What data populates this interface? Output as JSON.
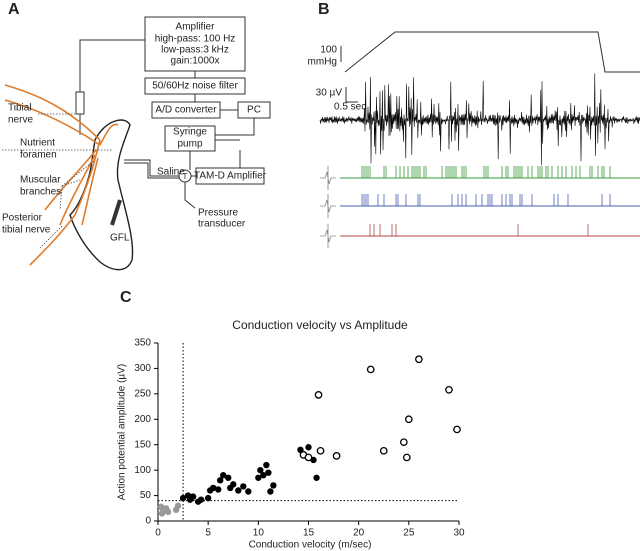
{
  "panel_a": {
    "label": "A",
    "amplifier": [
      "Amplifier",
      "high-pass: 100 Hz",
      "low-pass:3 kHz",
      "gain:1000x"
    ],
    "noise_filter": "50/60Hz noise filter",
    "ad_converter": "A/D converter",
    "pc": "PC",
    "syringe_pump": [
      "Syringe",
      "pump"
    ],
    "tam_d": "TAM-D Amplifier",
    "t": "T",
    "saline": "Saline",
    "pressure_transducer": [
      "Pressure",
      "transducer"
    ],
    "tibial_nerve": [
      "Tibial",
      "nerve"
    ],
    "nutrient_foramen": [
      "Nutrient",
      "foramen"
    ],
    "muscular_branches": [
      "Muscular",
      "branches"
    ],
    "posterior_tibial_nerve": [
      "Posterior",
      "tibial nerve"
    ],
    "gfl": "GFL"
  },
  "panel_b": {
    "label": "B",
    "pressure_scale": [
      "100",
      "mmHg"
    ],
    "voltage_scale": "30 µV",
    "time_scale": "0.5 sec"
  },
  "panel_c": {
    "label": "C",
    "chart_data": {
      "type": "scatter",
      "title": "Conduction velocity vs Amplitude",
      "x_label": "Conduction velocity (m/sec)",
      "y_label": "Action potential amplitude (µV)",
      "xlim": [
        0,
        30
      ],
      "ylim": [
        0,
        350
      ],
      "xticks": [
        0,
        5,
        10,
        15,
        20,
        25,
        30
      ],
      "yticks": [
        0,
        50,
        100,
        150,
        200,
        250,
        300,
        350
      ],
      "reference_lines": {
        "x": 2.5,
        "y": 40
      },
      "series": [
        {
          "color": "#999999",
          "marker": "filled",
          "x": [
            0.3,
            0.5,
            0.8,
            0.4,
            1.0,
            1.8,
            2.0
          ],
          "y": [
            28,
            22,
            25,
            15,
            18,
            22,
            30
          ]
        },
        {
          "color": "#000000",
          "marker": "filled",
          "x": [
            2.5,
            3.0,
            3.2,
            3.5,
            4.0,
            4.3,
            5.0,
            5.2,
            5.5,
            6.0,
            6.2,
            6.5,
            7.0,
            7.2,
            7.5,
            8.0,
            8.5,
            9.0,
            10.0,
            10.2,
            10.5,
            10.8,
            11.0,
            11.2,
            11.5,
            14.2,
            14.5,
            15.0,
            15.5,
            15.8
          ],
          "y": [
            45,
            50,
            42,
            48,
            38,
            42,
            45,
            60,
            65,
            62,
            80,
            90,
            85,
            65,
            72,
            60,
            68,
            58,
            85,
            100,
            90,
            110,
            95,
            58,
            70,
            140,
            130,
            145,
            120,
            85
          ]
        },
        {
          "color": "#000000",
          "marker": "open",
          "x": [
            14.5,
            15.0,
            16.0,
            16.2,
            17.8,
            21.2,
            22.5,
            24.5,
            24.8,
            25.0,
            26.0,
            29.0,
            29.8
          ],
          "y": [
            130,
            125,
            248,
            138,
            128,
            298,
            138,
            155,
            125,
            200,
            318,
            258,
            180
          ]
        }
      ]
    }
  }
}
